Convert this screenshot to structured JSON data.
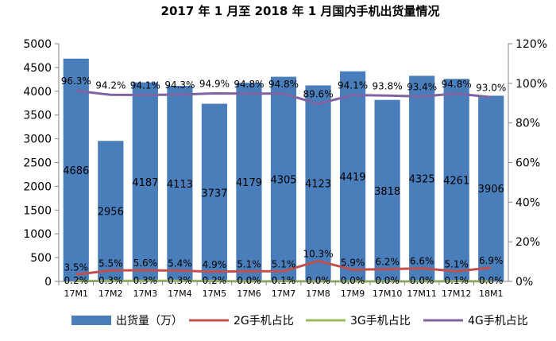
{
  "chart_data": {
    "type": "bar",
    "title": "2017 年 1 月至 2018 年 1 月国内手机出货量情况",
    "categories": [
      "17M1",
      "17M2",
      "17M3",
      "17M4",
      "17M5",
      "17M6",
      "17M7",
      "17M8",
      "17M9",
      "17M10",
      "17M11",
      "17M12",
      "18M1"
    ],
    "left_axis": {
      "min": 0,
      "max": 5000,
      "step": 500,
      "ticks": [
        "0",
        "500",
        "1000",
        "1500",
        "2000",
        "2500",
        "3000",
        "3500",
        "4000",
        "4500",
        "5000"
      ]
    },
    "right_axis": {
      "min": 0,
      "max": 120,
      "step": 20,
      "ticks": [
        "0%",
        "20%",
        "40%",
        "60%",
        "80%",
        "100%",
        "120%"
      ]
    },
    "grid": false,
    "legend_position": "bottom",
    "series": [
      {
        "name": "出货量（万）",
        "type": "bar",
        "axis": "left",
        "color": "#4a7ebb",
        "values": [
          4686,
          2956,
          4187,
          4113,
          3737,
          4179,
          4305,
          4123,
          4419,
          3818,
          4325,
          4261,
          3906
        ],
        "labels": [
          "4686",
          "2956",
          "4187",
          "4113",
          "3737",
          "4179",
          "4305",
          "4123",
          "4419",
          "3818",
          "4325",
          "4261",
          "3906"
        ]
      },
      {
        "name": "2G手机占比",
        "type": "line",
        "axis": "right",
        "color": "#c0504d",
        "values": [
          3.5,
          5.5,
          5.6,
          5.4,
          4.9,
          5.1,
          5.1,
          10.3,
          5.9,
          6.2,
          6.6,
          5.1,
          6.9
        ],
        "labels": [
          "3.5%",
          "5.5%",
          "5.6%",
          "5.4%",
          "4.9%",
          "5.1%",
          "5.1%",
          "10.3%",
          "5.9%",
          "6.2%",
          "6.6%",
          "5.1%",
          "6.9%"
        ]
      },
      {
        "name": "3G手机占比",
        "type": "line",
        "axis": "right",
        "color": "#9bbb59",
        "values": [
          0.2,
          0.3,
          0.3,
          0.3,
          0.2,
          0.0,
          0.1,
          0.0,
          0.0,
          0.0,
          0.0,
          0.1,
          0.0
        ],
        "labels": [
          "0.2%",
          "0.3%",
          "0.3%",
          "0.3%",
          "0.2%",
          "0.0%",
          "0.1%",
          "0.0%",
          "0.0%",
          "0.0%",
          "0.0%",
          "0.1%",
          "0.0%"
        ]
      },
      {
        "name": "4G手机占比",
        "type": "line",
        "axis": "right",
        "color": "#8064a2",
        "values": [
          96.3,
          94.2,
          94.1,
          94.3,
          94.9,
          94.8,
          94.8,
          89.6,
          94.1,
          93.8,
          93.4,
          94.8,
          93.0
        ],
        "labels": [
          "96.3%",
          "94.2%",
          "94.1%",
          "94.3%",
          "94.9%",
          "94.8%",
          "94.8%",
          "89.6%",
          "94.1%",
          "93.8%",
          "93.4%",
          "94.8%",
          "93.0%"
        ]
      }
    ]
  }
}
